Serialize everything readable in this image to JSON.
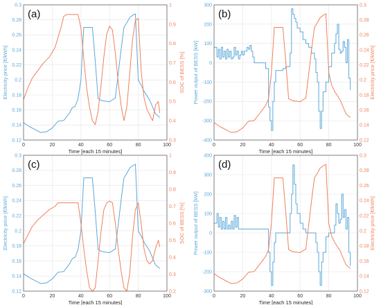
{
  "colors": {
    "blue": "#5aa7d8",
    "orange": "#ef7f5a",
    "grid": "#e4e4e4",
    "frame": "#4d4d4d",
    "text": "#333333"
  },
  "chart_data": [
    {
      "panel": "(a)",
      "type": "line",
      "xlabel": "Time [each 15 minutes]",
      "xlim": [
        0,
        100
      ],
      "xticks": [
        "0",
        "20",
        "40",
        "60",
        "80",
        "100"
      ],
      "left_axis": {
        "label": "Electricity price [€/kWh]",
        "ylim": [
          0.12,
          0.3
        ],
        "color_key": "blue",
        "ticks": [
          "0.12",
          "0.14",
          "0.16",
          "0.18",
          "0.2",
          "0.22",
          "0.24",
          "0.26",
          "0.28",
          "0.3"
        ]
      },
      "right_axis": {
        "label": "SOC of BESS [%]",
        "ylim": [
          0.3,
          1
        ],
        "color_key": "orange",
        "ticks": [
          "0.3",
          "0.4",
          "0.5",
          "0.6",
          "0.7",
          "0.8",
          "0.9",
          "1"
        ]
      },
      "series": [
        {
          "axis": "left",
          "color_key": "blue",
          "x": [
            0,
            4,
            8,
            12,
            16,
            20,
            24,
            28,
            32,
            34,
            36,
            38,
            40,
            42,
            44,
            48,
            50,
            52,
            54,
            56,
            60,
            64,
            68,
            70,
            72,
            74,
            76,
            78,
            80,
            82,
            84,
            88,
            92,
            95
          ],
          "y": [
            0.143,
            0.138,
            0.134,
            0.13,
            0.131,
            0.136,
            0.145,
            0.146,
            0.156,
            0.163,
            0.165,
            0.175,
            0.2,
            0.27,
            0.27,
            0.27,
            0.225,
            0.175,
            0.173,
            0.172,
            0.171,
            0.176,
            0.24,
            0.27,
            0.276,
            0.283,
            0.286,
            0.288,
            0.2,
            0.193,
            0.185,
            0.173,
            0.155,
            0.15
          ]
        },
        {
          "axis": "right",
          "color_key": "orange",
          "x": [
            0,
            3,
            6,
            10,
            14,
            18,
            22,
            24,
            26,
            28,
            30,
            32,
            34,
            36,
            38,
            40,
            42,
            44,
            46,
            48,
            50,
            52,
            54,
            56,
            58,
            60,
            62,
            64,
            66,
            68,
            70,
            72,
            74,
            76,
            78,
            80,
            82,
            84,
            86,
            88,
            90,
            92,
            94,
            95
          ],
          "y": [
            0.51,
            0.57,
            0.62,
            0.66,
            0.7,
            0.73,
            0.78,
            0.83,
            0.88,
            0.94,
            0.95,
            0.95,
            0.95,
            0.95,
            0.95,
            0.88,
            0.72,
            0.57,
            0.47,
            0.4,
            0.38,
            0.45,
            0.58,
            0.73,
            0.85,
            0.89,
            0.87,
            0.75,
            0.6,
            0.48,
            0.4,
            0.47,
            0.64,
            0.82,
            0.92,
            0.93,
            0.66,
            0.52,
            0.46,
            0.43,
            0.4,
            0.48,
            0.5,
            0.44
          ]
        }
      ]
    },
    {
      "panel": "(b)",
      "type": "line",
      "xlabel": "Time [each 15 minutes]",
      "xlim": [
        0,
        100
      ],
      "xticks": [
        "0",
        "20",
        "40",
        "60",
        "80",
        "100"
      ],
      "left_axis": {
        "label": "Power output of BESS [kW]",
        "ylim": [
          -400,
          300
        ],
        "color_key": "blue",
        "ticks": [
          "-400",
          "-300",
          "-200",
          "-100",
          "0",
          "100",
          "200",
          "300"
        ]
      },
      "right_axis": {
        "label": "Electricity price [€/kWh]",
        "ylim": [
          0.12,
          0.3
        ],
        "color_key": "orange",
        "ticks": [
          "0.12",
          "0.14",
          "0.16",
          "0.18",
          "0.2",
          "0.22",
          "0.24",
          "0.26",
          "0.28",
          "0.3"
        ]
      },
      "series": [
        {
          "axis": "left",
          "color_key": "blue",
          "step": true,
          "x": [
            0,
            2,
            3,
            4,
            5,
            6,
            7,
            8,
            9,
            10,
            11,
            12,
            13,
            14,
            15,
            16,
            17,
            18,
            19,
            20,
            21,
            22,
            23,
            24,
            25,
            26,
            27,
            28,
            29,
            30,
            36,
            38,
            39,
            40,
            41,
            42,
            43,
            44,
            46,
            48,
            50,
            52,
            53,
            54,
            55,
            56,
            57,
            58,
            60,
            62,
            64,
            66,
            68,
            70,
            71,
            72,
            73,
            74,
            75,
            76,
            78,
            80,
            82,
            84,
            85,
            86,
            87,
            88,
            89,
            90,
            91,
            92,
            93,
            94,
            95
          ],
          "y": [
            80,
            30,
            70,
            20,
            80,
            30,
            60,
            20,
            70,
            30,
            60,
            20,
            30,
            80,
            40,
            60,
            20,
            40,
            60,
            40,
            60,
            60,
            80,
            70,
            90,
            60,
            30,
            0,
            0,
            0,
            -30,
            -230,
            -300,
            -350,
            -200,
            -100,
            -40,
            -40,
            -40,
            -30,
            -20,
            -20,
            50,
            280,
            250,
            230,
            210,
            180,
            160,
            120,
            100,
            80,
            50,
            20,
            -50,
            -100,
            -250,
            -340,
            -250,
            -150,
            -100,
            -20,
            50,
            100,
            150,
            200,
            70,
            50,
            60,
            110,
            80,
            0,
            120,
            -80,
            -140
          ]
        },
        {
          "axis": "right",
          "color_key": "orange",
          "x": [
            0,
            4,
            8,
            12,
            16,
            20,
            24,
            28,
            32,
            36,
            38,
            40,
            42,
            44,
            48,
            50,
            52,
            54,
            56,
            60,
            64,
            68,
            70,
            72,
            74,
            76,
            78,
            80,
            82,
            84,
            88,
            92,
            95
          ],
          "y": [
            0.143,
            0.138,
            0.134,
            0.13,
            0.131,
            0.136,
            0.145,
            0.146,
            0.156,
            0.166,
            0.175,
            0.21,
            0.27,
            0.27,
            0.27,
            0.225,
            0.175,
            0.173,
            0.172,
            0.171,
            0.176,
            0.24,
            0.27,
            0.276,
            0.283,
            0.286,
            0.288,
            0.21,
            0.193,
            0.185,
            0.173,
            0.155,
            0.15
          ]
        }
      ]
    },
    {
      "panel": "(c)",
      "type": "line",
      "xlabel": "Time [each 15 minutes]",
      "xlim": [
        0,
        100
      ],
      "xticks": [
        "0",
        "20",
        "40",
        "60",
        "80",
        "100"
      ],
      "left_axis": {
        "label": "Electricity price [€/kWh]",
        "ylim": [
          0.12,
          0.3
        ],
        "color_key": "blue",
        "ticks": [
          "0.12",
          "0.14",
          "0.16",
          "0.18",
          "0.2",
          "0.22",
          "0.24",
          "0.26",
          "0.28",
          "0.3"
        ]
      },
      "right_axis": {
        "label": "SOC of BESS [%]",
        "ylim": [
          0.2,
          1
        ],
        "color_key": "orange",
        "ticks": [
          "0.2",
          "0.3",
          "0.4",
          "0.5",
          "0.6",
          "0.7",
          "0.8",
          "0.9",
          "1"
        ]
      },
      "series": [
        {
          "axis": "left",
          "color_key": "blue",
          "x": [
            0,
            4,
            8,
            12,
            16,
            20,
            24,
            28,
            32,
            34,
            36,
            38,
            40,
            42,
            44,
            48,
            50,
            52,
            54,
            56,
            60,
            64,
            68,
            70,
            72,
            74,
            76,
            78,
            80,
            82,
            84,
            88,
            92,
            95
          ],
          "y": [
            0.143,
            0.138,
            0.134,
            0.13,
            0.131,
            0.136,
            0.145,
            0.146,
            0.156,
            0.163,
            0.165,
            0.175,
            0.2,
            0.27,
            0.27,
            0.27,
            0.225,
            0.175,
            0.173,
            0.172,
            0.171,
            0.176,
            0.24,
            0.27,
            0.276,
            0.283,
            0.286,
            0.288,
            0.2,
            0.193,
            0.185,
            0.173,
            0.155,
            0.15
          ]
        },
        {
          "axis": "right",
          "color_key": "orange",
          "x": [
            0,
            3,
            6,
            10,
            14,
            18,
            22,
            24,
            28,
            32,
            36,
            38,
            40,
            42,
            44,
            46,
            48,
            50,
            52,
            54,
            56,
            58,
            60,
            62,
            64,
            66,
            68,
            70,
            72,
            74,
            76,
            78,
            80,
            82,
            84,
            86,
            88,
            90,
            92,
            94,
            95
          ],
          "y": [
            0.48,
            0.53,
            0.58,
            0.62,
            0.65,
            0.68,
            0.7,
            0.72,
            0.72,
            0.72,
            0.72,
            0.72,
            0.6,
            0.45,
            0.32,
            0.22,
            0.2,
            0.22,
            0.38,
            0.55,
            0.68,
            0.72,
            0.73,
            0.72,
            0.6,
            0.45,
            0.32,
            0.22,
            0.2,
            0.3,
            0.52,
            0.68,
            0.72,
            0.6,
            0.45,
            0.38,
            0.36,
            0.38,
            0.45,
            0.5,
            0.46
          ]
        }
      ]
    },
    {
      "panel": "(d)",
      "type": "line",
      "xlabel": "Time [each 15 minutes]",
      "xlim": [
        0,
        100
      ],
      "xticks": [
        "0",
        "20",
        "40",
        "60",
        "80",
        "100"
      ],
      "left_axis": {
        "label": "Power output of BESS [kW]",
        "ylim": [
          -300,
          400
        ],
        "color_key": "blue",
        "ticks": [
          "-300",
          "-200",
          "-100",
          "0",
          "100",
          "200",
          "300",
          "400"
        ]
      },
      "right_axis": {
        "label": "Electricity price [€/kWh]",
        "ylim": [
          0.12,
          0.3
        ],
        "color_key": "orange",
        "ticks": [
          "0.12",
          "0.14",
          "0.16",
          "0.18",
          "0.2",
          "0.22",
          "0.24",
          "0.26",
          "0.28",
          "0.3"
        ]
      },
      "series": [
        {
          "axis": "left",
          "color_key": "blue",
          "step": true,
          "x": [
            0,
            2,
            3,
            4,
            5,
            6,
            7,
            8,
            9,
            10,
            11,
            12,
            13,
            14,
            15,
            16,
            17,
            18,
            20,
            22,
            24,
            26,
            28,
            30,
            36,
            38,
            39,
            40,
            41,
            42,
            43,
            44,
            46,
            48,
            50,
            52,
            53,
            54,
            55,
            56,
            57,
            58,
            60,
            62,
            64,
            66,
            68,
            70,
            71,
            72,
            73,
            74,
            75,
            76,
            78,
            80,
            82,
            84,
            85,
            86,
            87,
            88,
            89,
            90,
            91,
            92,
            93,
            94,
            95
          ],
          "y": [
            50,
            100,
            30,
            80,
            20,
            60,
            20,
            80,
            20,
            40,
            20,
            60,
            20,
            90,
            30,
            80,
            20,
            20,
            20,
            20,
            20,
            20,
            20,
            20,
            20,
            -100,
            -200,
            -270,
            -150,
            -50,
            0,
            0,
            0,
            0,
            0,
            0,
            100,
            200,
            350,
            250,
            150,
            100,
            50,
            20,
            0,
            0,
            0,
            0,
            -50,
            -100,
            -200,
            -270,
            -150,
            -100,
            -20,
            0,
            0,
            40,
            150,
            100,
            50,
            70,
            200,
            80,
            120,
            20,
            80,
            -100,
            -170
          ]
        },
        {
          "axis": "right",
          "color_key": "orange",
          "x": [
            0,
            4,
            8,
            12,
            16,
            20,
            24,
            28,
            32,
            36,
            38,
            40,
            42,
            44,
            48,
            50,
            52,
            54,
            56,
            60,
            64,
            68,
            70,
            72,
            74,
            76,
            78,
            80,
            82,
            84,
            88,
            92,
            95
          ],
          "y": [
            0.143,
            0.138,
            0.134,
            0.13,
            0.131,
            0.136,
            0.145,
            0.146,
            0.156,
            0.166,
            0.175,
            0.21,
            0.27,
            0.27,
            0.27,
            0.225,
            0.175,
            0.173,
            0.172,
            0.171,
            0.176,
            0.24,
            0.27,
            0.276,
            0.283,
            0.286,
            0.288,
            0.21,
            0.193,
            0.185,
            0.173,
            0.155,
            0.15
          ]
        }
      ]
    }
  ]
}
